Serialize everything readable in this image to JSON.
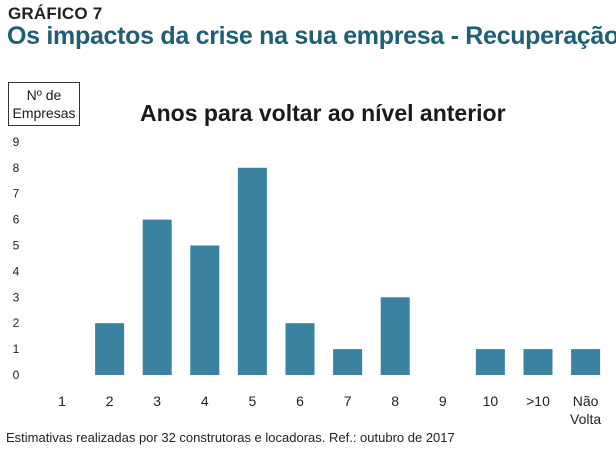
{
  "header": {
    "figure_label": "GRÁFICO 7",
    "title": "Os impactos da crise na sua empresa - Recuperação"
  },
  "footnote": "Estimativas realizadas por 32 construtoras e locadoras. Ref.: outubro de 2017",
  "chart_data": {
    "type": "bar",
    "title": "Anos para voltar ao nível anterior",
    "ylabel_lines": [
      "Nº de",
      "Empresas"
    ],
    "xlabel": "",
    "categories": [
      "1",
      "2",
      "3",
      "4",
      "5",
      "6",
      "7",
      "8",
      "9",
      "10",
      ">10",
      "Não Volta"
    ],
    "category_lines": [
      [
        "1"
      ],
      [
        "2"
      ],
      [
        "3"
      ],
      [
        "4"
      ],
      [
        "5"
      ],
      [
        "6"
      ],
      [
        "7"
      ],
      [
        "8"
      ],
      [
        "9"
      ],
      [
        "10"
      ],
      [
        ">10"
      ],
      [
        "Não",
        "Volta"
      ]
    ],
    "values": [
      0,
      2,
      6,
      5,
      8,
      2,
      1,
      3,
      0,
      1,
      1,
      1
    ],
    "ylim": [
      0,
      9
    ],
    "yticks": [
      0,
      1,
      2,
      3,
      4,
      5,
      6,
      7,
      8,
      9
    ],
    "grid": false,
    "bar_color": "#3a82a0"
  }
}
